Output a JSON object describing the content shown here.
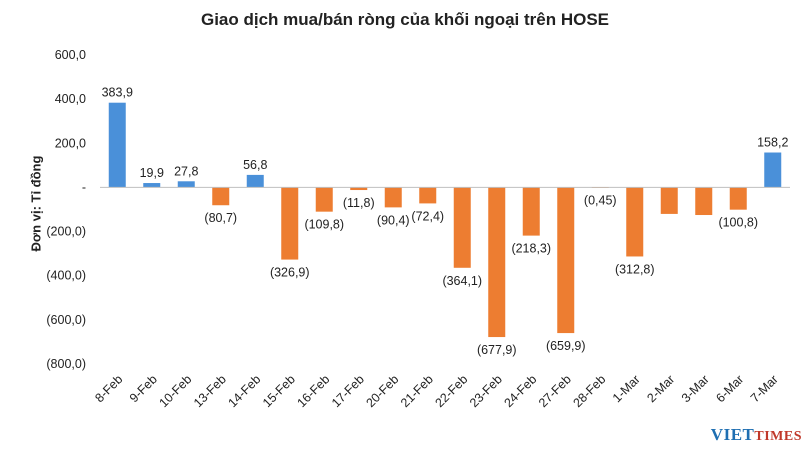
{
  "chart_data": {
    "type": "bar",
    "title": "Giao dịch mua/bán ròng của khối ngoại trên HOSE",
    "ylabel": "Đơn vị: Tỉ đồng",
    "xlabel": "",
    "ylim": [
      -800,
      600
    ],
    "yticks": [
      600,
      400,
      200,
      0,
      -200,
      -400,
      -600,
      -800
    ],
    "ytick_labels": [
      "600,0",
      "400,0",
      "200,0",
      "-",
      "(200,0)",
      "(400,0)",
      "(600,0)",
      "(800,0)"
    ],
    "grid": false,
    "categories": [
      "8-Feb",
      "9-Feb",
      "10-Feb",
      "13-Feb",
      "14-Feb",
      "15-Feb",
      "16-Feb",
      "17-Feb",
      "20-Feb",
      "21-Feb",
      "22-Feb",
      "23-Feb",
      "24-Feb",
      "27-Feb",
      "28-Feb",
      "1-Mar",
      "2-Mar",
      "3-Mar",
      "6-Mar",
      "7-Mar"
    ],
    "values": [
      383.9,
      19.9,
      27.8,
      -80.7,
      56.8,
      -326.9,
      -109.8,
      -11.8,
      -90.4,
      -72.4,
      -364.1,
      -677.9,
      -218.3,
      -659.9,
      -0.45,
      -312.8,
      -120,
      -125,
      -100.8,
      158.2
    ],
    "data_labels": [
      "383,9",
      "19,9",
      "27,8",
      "(80,7)",
      "56,8",
      "(326,9)",
      "(109,8)",
      "(11,8)",
      "(90,4)",
      "(72,4)",
      "(364,1)",
      "(677,9)",
      "(218,3)",
      "(659,9)",
      "(0,45)",
      "(312,8)",
      "",
      "",
      "(100,8)",
      "158,2"
    ],
    "colors": {
      "positive": "#4a90d9",
      "negative": "#ed7d31"
    }
  },
  "watermark": {
    "viet": "VIET",
    "times": "TIMES"
  }
}
